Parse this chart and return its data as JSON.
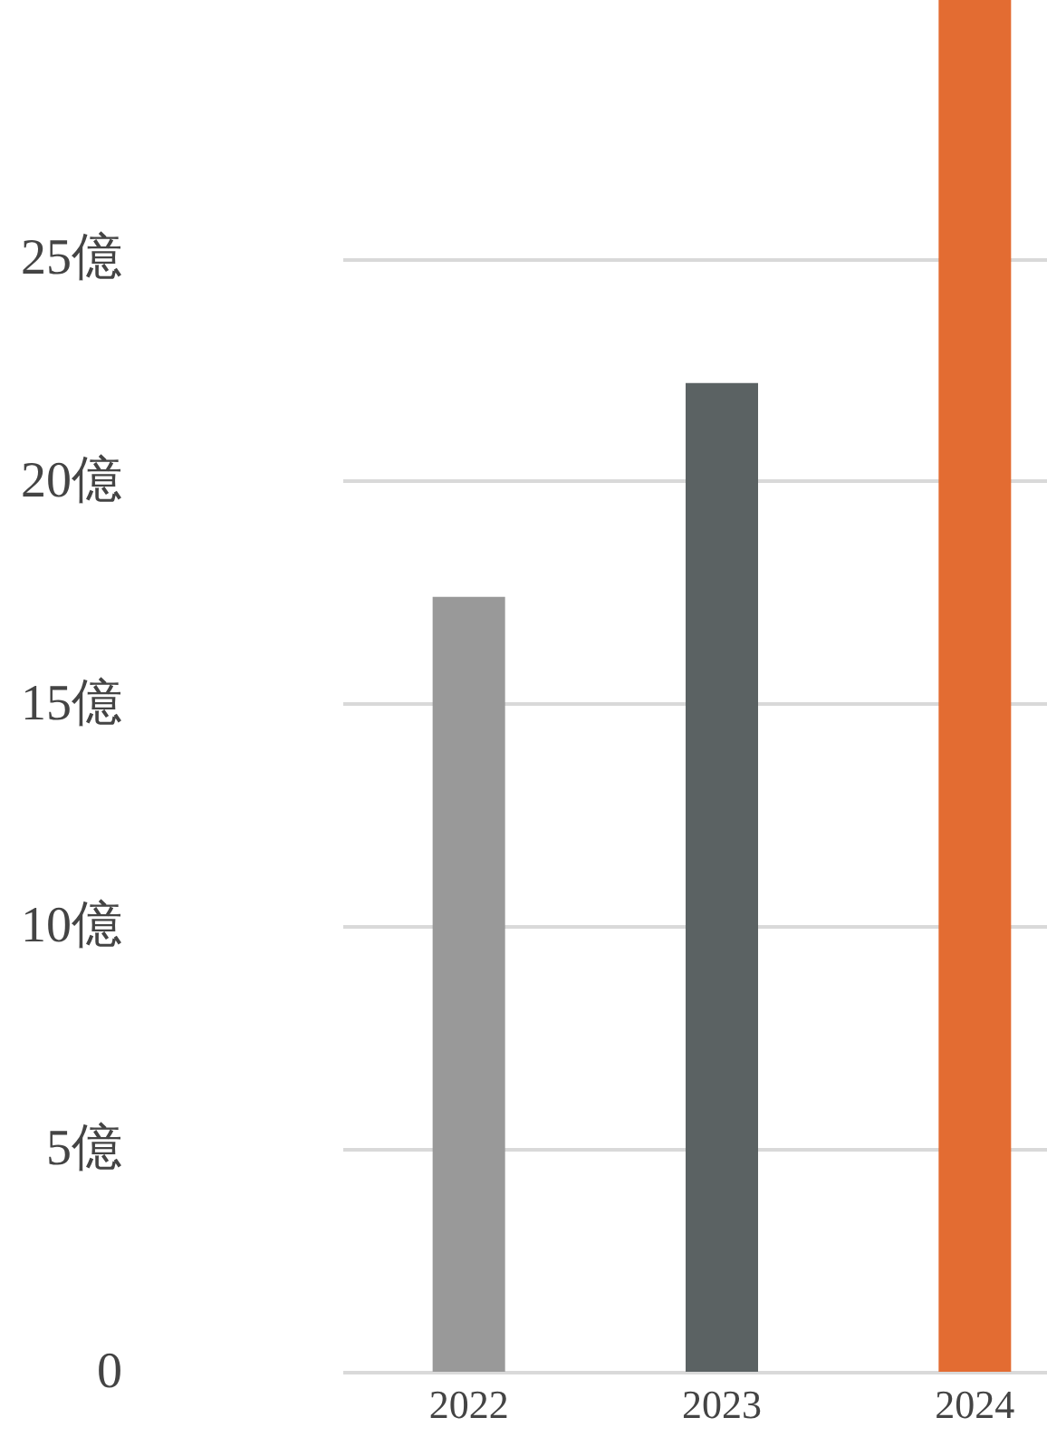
{
  "chart_data": {
    "type": "bar",
    "categories": [
      "2022",
      "2023",
      "2024"
    ],
    "values": [
      17.4,
      22.2,
      30.8
    ],
    "colors": [
      "#999999",
      "#5b6263",
      "#e36c32"
    ],
    "ylim": [
      0,
      30.8
    ],
    "yticks": [
      0,
      {
        "value": 5,
        "label": "5億"
      },
      {
        "value": 10,
        "label": "10億"
      },
      {
        "value": 15,
        "label": "15億"
      },
      {
        "value": 20,
        "label": "20億"
      },
      {
        "value": 25,
        "label": "25億"
      }
    ],
    "grid": "y"
  }
}
